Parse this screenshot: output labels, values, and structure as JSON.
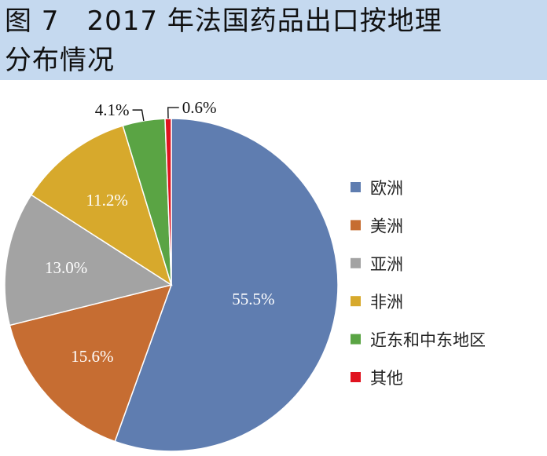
{
  "figure": {
    "title_line1": "图 7　2017 年法国药品出口按地理",
    "title_line2": "分布情况"
  },
  "chart_data": {
    "type": "pie",
    "title": "图 7　2017 年法国药品出口按地理分布情况",
    "unit": "%",
    "legend_position": "right",
    "slices": [
      {
        "label": "欧洲",
        "value": 55.5,
        "value_text": "55.5%",
        "color": "#5f7db0",
        "label_inside": true
      },
      {
        "label": "美洲",
        "value": 15.6,
        "value_text": "15.6%",
        "color": "#c66d32",
        "label_inside": true
      },
      {
        "label": "亚洲",
        "value": 13.0,
        "value_text": "13.0%",
        "color": "#a3a3a3",
        "label_inside": true
      },
      {
        "label": "非洲",
        "value": 11.2,
        "value_text": "11.2%",
        "color": "#d7a92c",
        "label_inside": true
      },
      {
        "label": "近东和中东地区",
        "value": 4.1,
        "value_text": "4.1%",
        "color": "#5aa444",
        "label_inside": false
      },
      {
        "label": "其他",
        "value": 0.6,
        "value_text": "0.6%",
        "color": "#e0131f",
        "label_inside": false
      }
    ]
  }
}
